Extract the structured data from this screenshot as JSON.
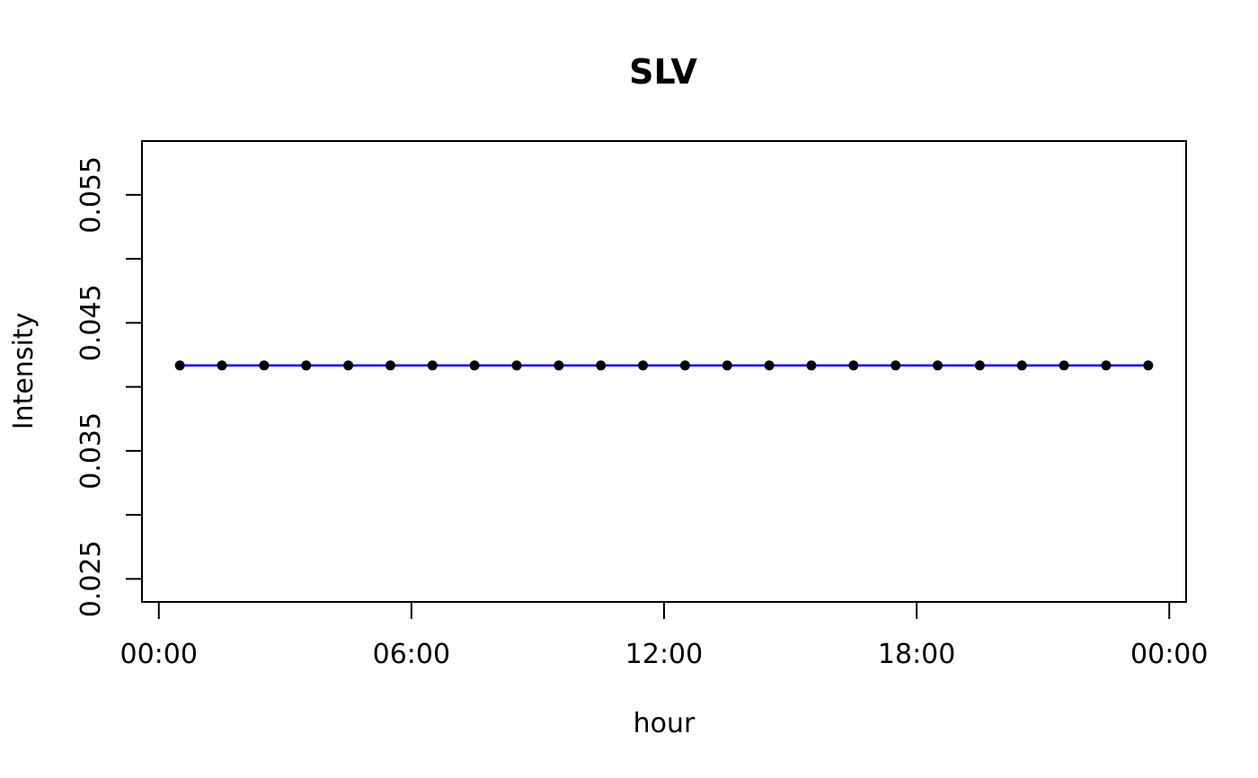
{
  "chart_data": {
    "type": "line",
    "title": "SLV",
    "xlabel": "hour",
    "ylabel": "Intensity",
    "x_unit": "hours",
    "xlim": [
      -0.4,
      24.4
    ],
    "ylim": [
      0.0232,
      0.0592
    ],
    "x_ticks": [
      {
        "value": 0,
        "label": "00:00"
      },
      {
        "value": 6,
        "label": "06:00"
      },
      {
        "value": 12,
        "label": "12:00"
      },
      {
        "value": 18,
        "label": "18:00"
      },
      {
        "value": 24,
        "label": "00:00"
      }
    ],
    "y_ticks": [
      {
        "value": 0.025,
        "label": "0.025"
      },
      {
        "value": 0.03,
        "label": ""
      },
      {
        "value": 0.035,
        "label": "0.035"
      },
      {
        "value": 0.04,
        "label": ""
      },
      {
        "value": 0.045,
        "label": "0.045"
      },
      {
        "value": 0.05,
        "label": ""
      },
      {
        "value": 0.055,
        "label": "0.055"
      }
    ],
    "grid": false,
    "line_color": "#0000ff",
    "point_color": "#000000",
    "series": [
      {
        "x": [
          0.5,
          1.5,
          2.5,
          3.5,
          4.5,
          5.5,
          6.5,
          7.5,
          8.5,
          9.5,
          10.5,
          11.5,
          12.5,
          13.5,
          14.5,
          15.5,
          16.5,
          17.5,
          18.5,
          19.5,
          20.5,
          21.5,
          22.5,
          23.5
        ],
        "values": [
          0.04167,
          0.04167,
          0.04167,
          0.04167,
          0.04167,
          0.04167,
          0.04167,
          0.04167,
          0.04167,
          0.04167,
          0.04167,
          0.04167,
          0.04167,
          0.04167,
          0.04167,
          0.04167,
          0.04167,
          0.04167,
          0.04167,
          0.04167,
          0.04167,
          0.04167,
          0.04167,
          0.04167
        ]
      }
    ]
  }
}
